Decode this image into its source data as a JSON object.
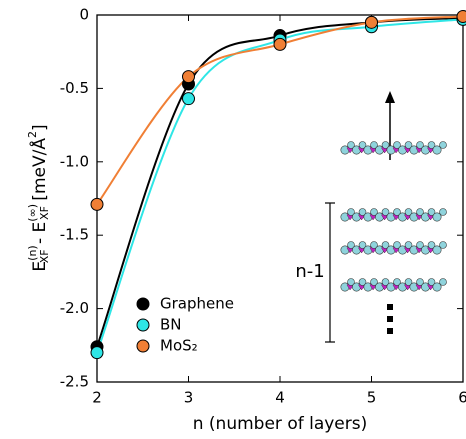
{
  "chart_data": {
    "type": "scatter",
    "xlabel": "n (number of layers)",
    "ylabel": [
      "E",
      "(n)",
      "XF",
      " - E",
      "(∞)",
      "XF",
      " [meV/Å",
      "2",
      "]"
    ],
    "x": [
      2,
      3,
      4,
      5,
      6
    ],
    "series": [
      {
        "name": "Graphene",
        "color": "#000000",
        "values": [
          -2.26,
          -0.47,
          -0.14,
          -0.05,
          -0.02
        ]
      },
      {
        "name": "BN",
        "color": "#2ee6e6",
        "values": [
          -2.3,
          -0.57,
          -0.17,
          -0.08,
          -0.03
        ]
      },
      {
        "name": "MoS₂",
        "color": "#f07f35",
        "values": [
          -1.29,
          -0.42,
          -0.2,
          -0.05,
          -0.01
        ]
      }
    ],
    "xlim": [
      2,
      6
    ],
    "xticks": [
      2,
      3,
      4,
      5,
      6
    ],
    "ylim": [
      -2.5,
      0
    ],
    "yticks": [
      0,
      -0.5,
      {
        "value": -1,
        "label": "-1.0"
      },
      -1.5,
      {
        "value": -2,
        "label": "-2.0"
      },
      -2.5
    ],
    "legend": "lower left",
    "annotations": [
      "n-1"
    ]
  }
}
